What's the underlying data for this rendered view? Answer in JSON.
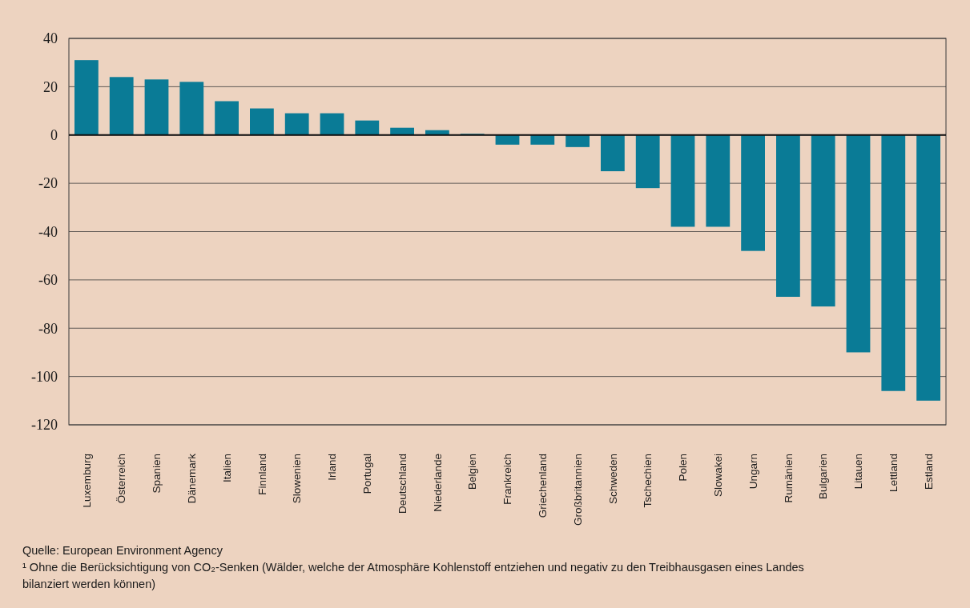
{
  "chart_data": {
    "type": "bar",
    "categories": [
      "Luxemburg",
      "Österreich",
      "Spanien",
      "Dänemark",
      "Italien",
      "Finnland",
      "Slowenien",
      "Irland",
      "Portugal",
      "Deutschland",
      "Niederlande",
      "Belgien",
      "Frankreich",
      "Griechenland",
      "Großbritannien",
      "Schweden",
      "Tschechien",
      "Polen",
      "Slowakei",
      "Ungarn",
      "Rumänien",
      "Bulgarien",
      "Litauen",
      "Lettland",
      "Estland"
    ],
    "values": [
      31,
      24,
      23,
      22,
      14,
      11,
      9,
      9,
      6,
      3,
      2,
      0.5,
      -4,
      -4,
      -5,
      -15,
      -22,
      -38,
      -38,
      -48,
      -67,
      -71,
      -90,
      -106,
      -110
    ],
    "color": "#0a7b96",
    "ylim": [
      -120,
      40
    ],
    "yticks": [
      -120,
      -100,
      -80,
      -60,
      -40,
      -20,
      0,
      20,
      40
    ],
    "grid": "y",
    "annotations": [
      "Quelle: European Environment Agency",
      "¹ Ohne die Berücksichtigung von CO₂-Senken (Wälder, welche der Atmosphäre Kohlenstoff entziehen und negativ zu den Treibhausgasen eines Landes bilanziert werden können)"
    ]
  }
}
